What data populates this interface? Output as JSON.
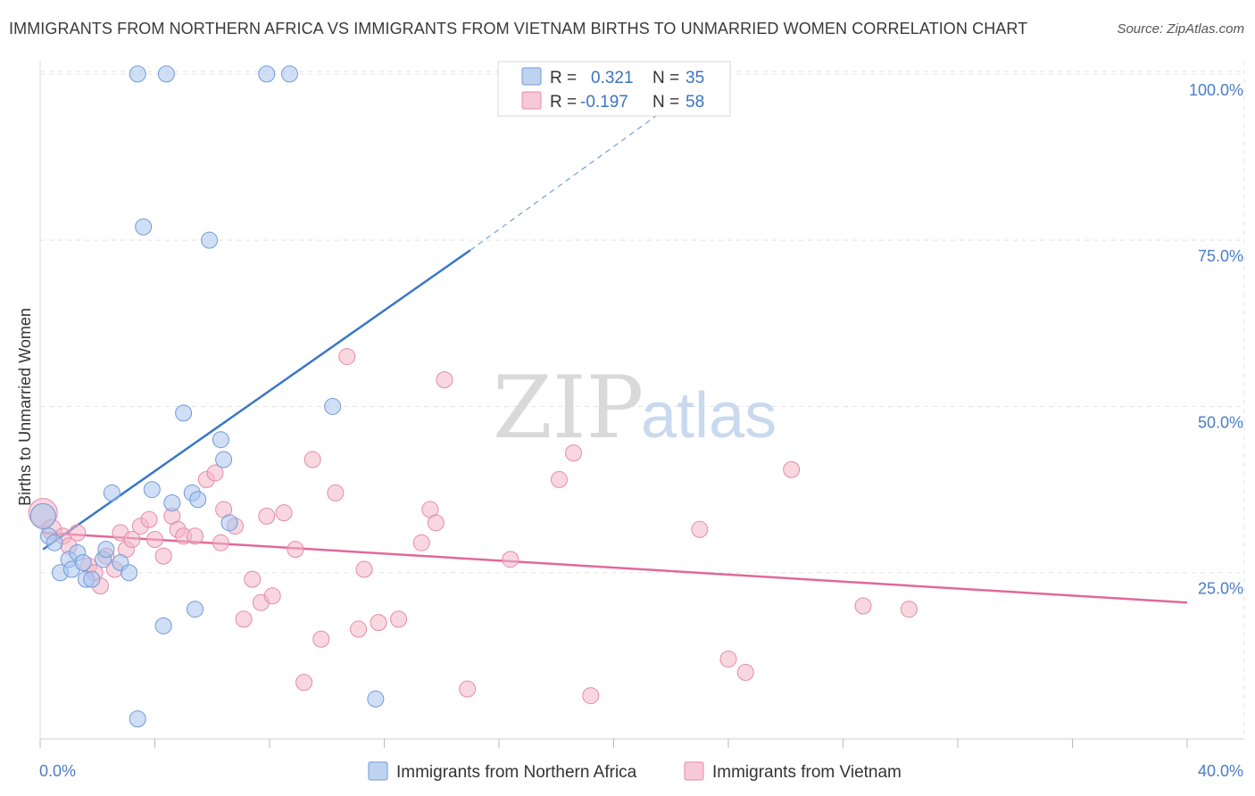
{
  "header": {
    "title": "IMMIGRANTS FROM NORTHERN AFRICA VS IMMIGRANTS FROM VIETNAM BIRTHS TO UNMARRIED WOMEN CORRELATION CHART",
    "source": "Source: ZipAtlas.com"
  },
  "watermark": {
    "zip": "ZIP",
    "atlas": "atlas"
  },
  "stats_legend": {
    "rows": [
      {
        "r_label": "R =",
        "r_value": "0.321",
        "n_label": "N =",
        "n_value": "35",
        "color": "#a9c4ec"
      },
      {
        "r_label": "R =",
        "r_value": "-0.197",
        "n_label": "N =",
        "n_value": "58",
        "color": "#f4b6c9"
      }
    ]
  },
  "chart_data": {
    "type": "scatter",
    "title": "IMMIGRANTS FROM NORTHERN AFRICA VS IMMIGRANTS FROM VIETNAM BIRTHS TO UNMARRIED WOMEN CORRELATION CHART",
    "xlabel": "",
    "ylabel": "Births to Unmarried Women",
    "xlim": [
      0,
      40
    ],
    "ylim": [
      0,
      102
    ],
    "x_tick_labels": [
      "0.0%",
      "40.0%"
    ],
    "y_ticks": [
      25,
      50,
      75,
      100
    ],
    "y_tick_labels": [
      "25.0%",
      "50.0%",
      "75.0%",
      "100.0%"
    ],
    "grid": true,
    "legend_position": "top-center",
    "series": [
      {
        "name": "Immigrants from Northern Africa",
        "color": "#a9c4ec",
        "stroke": "#6f9bd8",
        "trend_color": "#3a76c8",
        "trend": {
          "x_start": 0.1,
          "y_start": 28.5,
          "x_solid_end": 15.0,
          "y_solid_end": 73.5,
          "x_dash_end": 23.5,
          "y_dash_end": 100
        },
        "points": [
          [
            0.1,
            33.5,
            14
          ],
          [
            0.3,
            30.5,
            9
          ],
          [
            0.5,
            29.5,
            9
          ],
          [
            0.7,
            25.0,
            9
          ],
          [
            1.0,
            27.0,
            9
          ],
          [
            1.1,
            25.5,
            9
          ],
          [
            1.3,
            28.0,
            9
          ],
          [
            1.5,
            26.5,
            9
          ],
          [
            1.6,
            24.0,
            9
          ],
          [
            1.8,
            24.0,
            9
          ],
          [
            2.2,
            27.0,
            9
          ],
          [
            2.3,
            28.5,
            9
          ],
          [
            2.5,
            37.0,
            9
          ],
          [
            2.8,
            26.5,
            9
          ],
          [
            3.1,
            25.0,
            9
          ],
          [
            3.4,
            3.0,
            9
          ],
          [
            3.4,
            100.0,
            9
          ],
          [
            3.6,
            77.0,
            9
          ],
          [
            3.9,
            37.5,
            9
          ],
          [
            4.3,
            17.0,
            9
          ],
          [
            4.4,
            100.0,
            9
          ],
          [
            4.6,
            35.5,
            9
          ],
          [
            5.0,
            49.0,
            9
          ],
          [
            5.3,
            37.0,
            9
          ],
          [
            5.4,
            19.5,
            9
          ],
          [
            5.5,
            36.0,
            9
          ],
          [
            5.9,
            75.0,
            9
          ],
          [
            6.3,
            45.0,
            9
          ],
          [
            6.4,
            42.0,
            9
          ],
          [
            6.6,
            32.5,
            9
          ],
          [
            7.9,
            100.0,
            9
          ],
          [
            8.7,
            100.0,
            9
          ],
          [
            10.2,
            50.0,
            9
          ],
          [
            11.7,
            6.0,
            9
          ]
        ]
      },
      {
        "name": "Immigrants from Vietnam",
        "color": "#f4b6c9",
        "stroke": "#e58aa8",
        "trend_color": "#e0699a",
        "trend": {
          "x_start": 0.1,
          "y_start": 31.0,
          "x_end": 40.0,
          "y_end": 20.5
        },
        "points": [
          [
            0.1,
            34.0,
            16
          ],
          [
            0.4,
            31.5,
            11
          ],
          [
            0.8,
            30.5,
            9
          ],
          [
            1.0,
            29.0,
            9
          ],
          [
            1.3,
            31.0,
            9
          ],
          [
            1.7,
            26.0,
            9
          ],
          [
            1.9,
            25.0,
            9
          ],
          [
            2.1,
            23.0,
            9
          ],
          [
            2.3,
            27.5,
            9
          ],
          [
            2.6,
            25.5,
            9
          ],
          [
            2.8,
            31.0,
            9
          ],
          [
            3.0,
            28.5,
            9
          ],
          [
            3.2,
            30.0,
            9
          ],
          [
            3.5,
            32.0,
            9
          ],
          [
            3.8,
            33.0,
            9
          ],
          [
            4.0,
            30.0,
            9
          ],
          [
            4.3,
            27.5,
            9
          ],
          [
            4.6,
            33.5,
            9
          ],
          [
            4.8,
            31.5,
            9
          ],
          [
            5.0,
            30.5,
            9
          ],
          [
            5.4,
            30.5,
            9
          ],
          [
            5.8,
            39.0,
            9
          ],
          [
            6.1,
            40.0,
            9
          ],
          [
            6.3,
            29.5,
            9
          ],
          [
            6.4,
            34.5,
            9
          ],
          [
            6.8,
            32.0,
            9
          ],
          [
            7.1,
            18.0,
            9
          ],
          [
            7.4,
            24.0,
            9
          ],
          [
            7.7,
            20.5,
            9
          ],
          [
            7.9,
            33.5,
            9
          ],
          [
            8.1,
            21.5,
            9
          ],
          [
            8.5,
            34.0,
            9
          ],
          [
            8.9,
            28.5,
            9
          ],
          [
            9.2,
            8.5,
            9
          ],
          [
            9.5,
            42.0,
            9
          ],
          [
            9.8,
            15.0,
            9
          ],
          [
            10.3,
            37.0,
            9
          ],
          [
            10.7,
            57.5,
            9
          ],
          [
            11.1,
            16.5,
            9
          ],
          [
            11.3,
            25.5,
            9
          ],
          [
            11.8,
            17.5,
            9
          ],
          [
            12.5,
            18.0,
            9
          ],
          [
            13.3,
            29.5,
            9
          ],
          [
            13.6,
            34.5,
            9
          ],
          [
            13.8,
            32.5,
            9
          ],
          [
            14.1,
            54.0,
            9
          ],
          [
            14.9,
            7.5,
            9
          ],
          [
            16.4,
            27.0,
            9
          ],
          [
            18.1,
            39.0,
            9
          ],
          [
            18.6,
            43.0,
            9
          ],
          [
            19.2,
            6.5,
            9
          ],
          [
            23.0,
            31.5,
            9
          ],
          [
            24.0,
            12.0,
            9
          ],
          [
            24.6,
            10.0,
            9
          ],
          [
            26.2,
            40.5,
            9
          ],
          [
            28.7,
            20.0,
            9
          ],
          [
            30.3,
            19.5,
            9
          ]
        ]
      }
    ]
  }
}
